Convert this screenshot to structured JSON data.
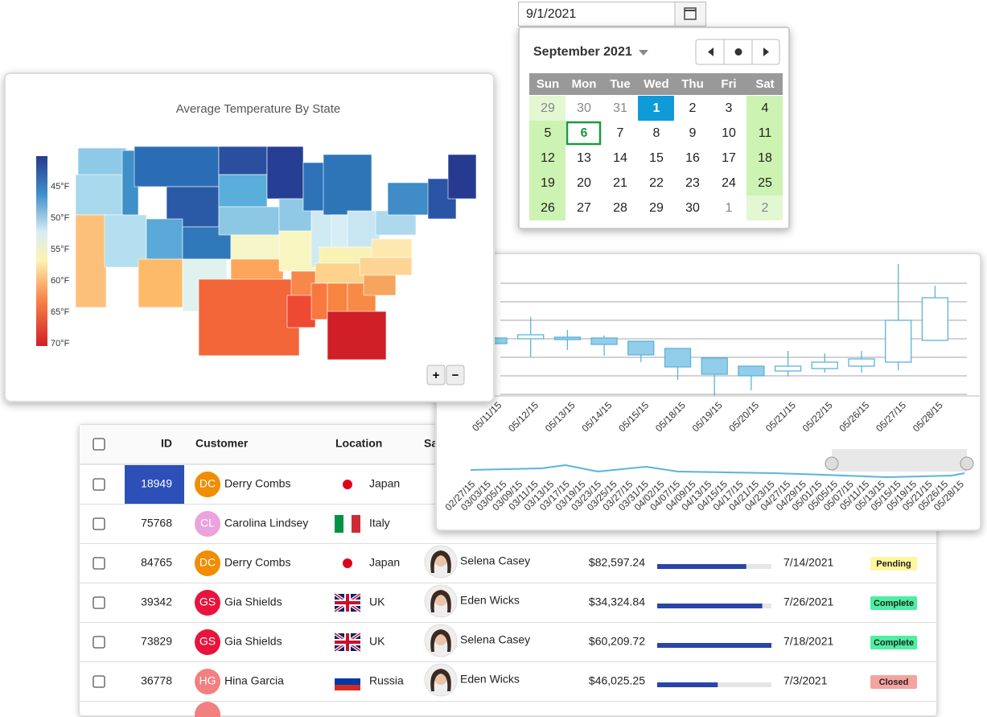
{
  "datepicker": {
    "input": "9/1/2021",
    "month_title": "September 2021",
    "weekdays": [
      "Sun",
      "Mon",
      "Tue",
      "Wed",
      "Thu",
      "Fri",
      "Sat"
    ],
    "weeks": [
      [
        29,
        30,
        31,
        1,
        2,
        3,
        4
      ],
      [
        5,
        6,
        7,
        8,
        9,
        10,
        11
      ],
      [
        12,
        13,
        14,
        15,
        16,
        17,
        18
      ],
      [
        19,
        20,
        21,
        22,
        23,
        24,
        25
      ],
      [
        26,
        27,
        28,
        29,
        30,
        1,
        2
      ]
    ],
    "today": 6
  },
  "map": {
    "title": "Average Temperature By State",
    "legend": [
      "45°F",
      "50°F",
      "55°F",
      "60°F",
      "65°F",
      "70°F"
    ],
    "zoom_in": "+",
    "zoom_out": "−"
  },
  "chart_data": {
    "type": "candlestick",
    "categories": [
      "05/11/15",
      "05/12/15",
      "05/13/15",
      "05/14/15",
      "05/15/15",
      "05/18/15",
      "05/19/15",
      "05/20/15",
      "05/21/15",
      "05/22/15",
      "05/26/15",
      "05/27/15",
      "05/28/15"
    ],
    "open": [
      72,
      71,
      73,
      72,
      68,
      59,
      47,
      37,
      31,
      34,
      37,
      42,
      69
    ],
    "high": [
      80,
      98,
      82,
      75,
      68,
      59,
      47,
      37,
      56,
      53,
      56,
      164,
      137
    ],
    "low": [
      60,
      48,
      57,
      50,
      42,
      20,
      0,
      7,
      24,
      29,
      29,
      32,
      69
    ],
    "close": [
      65,
      76,
      70,
      64,
      51,
      36,
      27,
      25,
      37,
      42,
      46,
      94,
      122
    ],
    "ylim": [
      0,
      170
    ],
    "up_color": "#ffffff",
    "down_color": "#92cdea",
    "line_color": "#5ab4dc",
    "navigator_labels": [
      "02/27/15",
      "03/03/15",
      "03/05/15",
      "03/09/15",
      "03/11/15",
      "03/13/15",
      "03/17/15",
      "03/19/15",
      "03/23/15",
      "03/25/15",
      "03/27/15",
      "03/31/15",
      "04/02/15",
      "04/07/15",
      "04/09/15",
      "04/13/15",
      "04/15/15",
      "04/17/15",
      "04/21/15",
      "04/23/15",
      "04/27/15",
      "04/29/15",
      "05/01/15",
      "05/05/15",
      "05/07/15",
      "05/11/15",
      "05/13/15",
      "05/15/15",
      "05/19/15",
      "05/21/15",
      "05/26/15",
      "05/28/15"
    ]
  },
  "table": {
    "headers": [
      "ID",
      "Customer",
      "Location",
      "Salesperson"
    ],
    "rows": [
      {
        "id": "18949",
        "initials": "DC",
        "customer": "Derry Combs",
        "avatar_color": "#f28c00",
        "location": "Japan"
      },
      {
        "id": "75768",
        "initials": "CL",
        "customer": "Carolina Lindsey",
        "avatar_color": "#eaa3dc",
        "location": "Italy"
      },
      {
        "id": "84765",
        "initials": "DC",
        "customer": "Derry Combs",
        "avatar_color": "#f28c00",
        "location": "Japan",
        "salesperson": "Selena Casey",
        "amount": "$82,597.24",
        "progress": 78,
        "date": "7/14/2021",
        "status": "Pending",
        "status_color": "#fff59d"
      },
      {
        "id": "39342",
        "initials": "GS",
        "customer": "Gia Shields",
        "avatar_color": "#e8143c",
        "location": "UK",
        "salesperson": "Eden Wicks",
        "amount": "$34,324.84",
        "progress": 92,
        "date": "7/26/2021",
        "status": "Complete",
        "status_color": "#4cf0a0"
      },
      {
        "id": "73829",
        "initials": "GS",
        "customer": "Gia Shields",
        "avatar_color": "#e8143c",
        "location": "UK",
        "salesperson": "Selena Casey",
        "amount": "$60,209.72",
        "progress": 100,
        "date": "7/18/2021",
        "status": "Complete",
        "status_color": "#4cf0a0"
      },
      {
        "id": "36778",
        "initials": "HG",
        "customer": "Hina Garcia",
        "avatar_color": "#f28080",
        "location": "Russia",
        "salesperson": "Eden Wicks",
        "amount": "$46,025.25",
        "progress": 53,
        "date": "7/3/2021",
        "status": "Closed",
        "status_color": "#f5a3a0"
      }
    ]
  }
}
